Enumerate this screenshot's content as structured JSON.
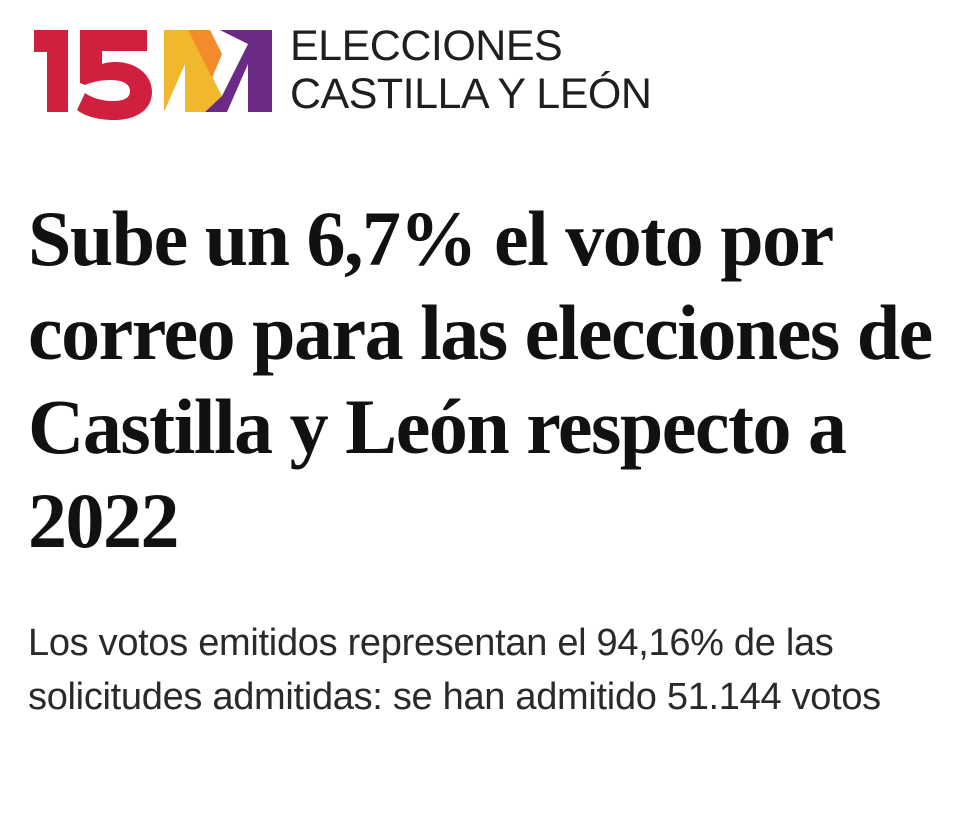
{
  "header": {
    "logo_text": "15M",
    "kicker_line_1": "ELECCIONES",
    "kicker_line_2": "CASTILLA Y LEÓN"
  },
  "article": {
    "headline": "Sube un 6,7% el voto por correo para las elecciones de Castilla y León respecto a 2022",
    "subheadline": "Los votos emitidos representan el 94,16% de las solicitudes admitidas: se han admitido 51.144 votos"
  },
  "colors": {
    "logo_red": "#d11f3f",
    "logo_yellow": "#f1b82d",
    "logo_purple": "#6b2a86",
    "text_dark": "#111111",
    "text_body": "#2a2a2a",
    "background": "#ffffff"
  }
}
